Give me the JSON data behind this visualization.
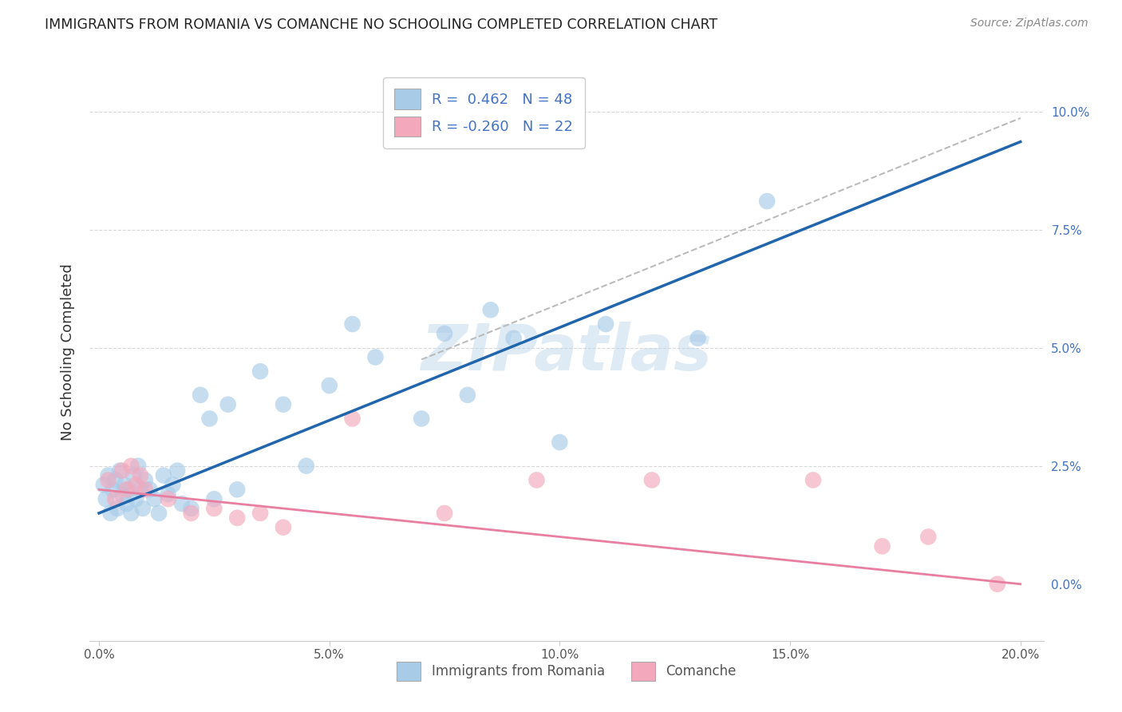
{
  "title": "IMMIGRANTS FROM ROMANIA VS COMANCHE NO SCHOOLING COMPLETED CORRELATION CHART",
  "source": "Source: ZipAtlas.com",
  "ylabel": "No Schooling Completed",
  "xlabel_vals": [
    0.0,
    5.0,
    10.0,
    15.0,
    20.0
  ],
  "ylabel_vals": [
    0.0,
    2.5,
    5.0,
    7.5,
    10.0
  ],
  "xlim": [
    -0.2,
    20.5
  ],
  "ylim": [
    -1.2,
    11.0
  ],
  "legend1_label": "R =  0.462   N = 48",
  "legend2_label": "R = -0.260   N = 22",
  "legend_bottom": "Immigrants from Romania",
  "legend_bottom2": "Comanche",
  "blue_color": "#a8cce8",
  "pink_color": "#f4a8bc",
  "blue_line_color": "#2166ac",
  "pink_line_color": "#e87fa0",
  "blue_scatter": [
    [
      0.1,
      2.1
    ],
    [
      0.15,
      1.8
    ],
    [
      0.2,
      2.3
    ],
    [
      0.25,
      1.5
    ],
    [
      0.3,
      2.0
    ],
    [
      0.35,
      2.2
    ],
    [
      0.4,
      1.6
    ],
    [
      0.45,
      2.4
    ],
    [
      0.5,
      1.9
    ],
    [
      0.55,
      2.1
    ],
    [
      0.6,
      1.7
    ],
    [
      0.65,
      2.0
    ],
    [
      0.7,
      1.5
    ],
    [
      0.75,
      2.3
    ],
    [
      0.8,
      1.8
    ],
    [
      0.85,
      2.5
    ],
    [
      0.9,
      2.0
    ],
    [
      0.95,
      1.6
    ],
    [
      1.0,
      2.2
    ],
    [
      1.1,
      2.0
    ],
    [
      1.2,
      1.8
    ],
    [
      1.3,
      1.5
    ],
    [
      1.4,
      2.3
    ],
    [
      1.5,
      1.9
    ],
    [
      1.6,
      2.1
    ],
    [
      1.7,
      2.4
    ],
    [
      1.8,
      1.7
    ],
    [
      2.0,
      1.6
    ],
    [
      2.2,
      4.0
    ],
    [
      2.4,
      3.5
    ],
    [
      2.5,
      1.8
    ],
    [
      2.8,
      3.8
    ],
    [
      3.0,
      2.0
    ],
    [
      3.5,
      4.5
    ],
    [
      4.0,
      3.8
    ],
    [
      4.5,
      2.5
    ],
    [
      5.0,
      4.2
    ],
    [
      5.5,
      5.5
    ],
    [
      6.0,
      4.8
    ],
    [
      7.0,
      3.5
    ],
    [
      7.5,
      5.3
    ],
    [
      8.0,
      4.0
    ],
    [
      8.5,
      5.8
    ],
    [
      9.0,
      5.2
    ],
    [
      10.0,
      3.0
    ],
    [
      11.0,
      5.5
    ],
    [
      13.0,
      5.2
    ],
    [
      14.5,
      8.1
    ]
  ],
  "pink_scatter": [
    [
      0.2,
      2.2
    ],
    [
      0.35,
      1.8
    ],
    [
      0.5,
      2.4
    ],
    [
      0.6,
      2.0
    ],
    [
      0.7,
      2.5
    ],
    [
      0.8,
      2.1
    ],
    [
      0.9,
      2.3
    ],
    [
      1.0,
      2.0
    ],
    [
      1.5,
      1.8
    ],
    [
      2.0,
      1.5
    ],
    [
      2.5,
      1.6
    ],
    [
      3.0,
      1.4
    ],
    [
      3.5,
      1.5
    ],
    [
      4.0,
      1.2
    ],
    [
      5.5,
      3.5
    ],
    [
      7.5,
      1.5
    ],
    [
      9.5,
      2.2
    ],
    [
      12.0,
      2.2
    ],
    [
      15.5,
      2.2
    ],
    [
      17.0,
      0.8
    ],
    [
      18.0,
      1.0
    ],
    [
      19.5,
      0.0
    ]
  ],
  "watermark": "ZIPatlas",
  "bg_color": "#ffffff",
  "grid_color": "#d8d8d8",
  "dashed_line_color": "#bbbbbb"
}
